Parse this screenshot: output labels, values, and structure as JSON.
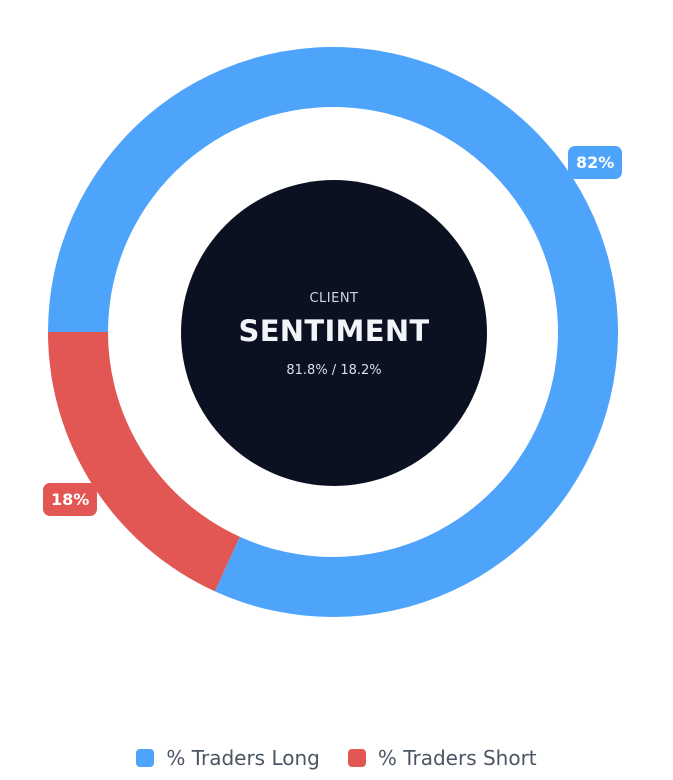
{
  "center": {
    "kicker": "CLIENT",
    "title": "SENTIMENT",
    "subtitle": "81.8% / 18.2%"
  },
  "chart_data": {
    "type": "pie",
    "categories": [
      "% Traders Long",
      "% Traders Short"
    ],
    "values": [
      81.8,
      18.2
    ],
    "data_labels": [
      "82%",
      "18%"
    ],
    "colors": [
      "#4ea3fb",
      "#e25753"
    ],
    "legend": "bottom-center"
  }
}
